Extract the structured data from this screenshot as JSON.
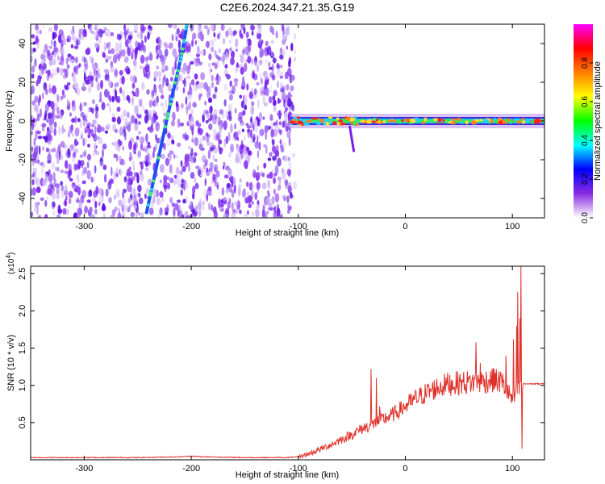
{
  "title": "C2E6.2024.347.21.35.G19",
  "colors": {
    "snr_line": "#e0302a",
    "scatter_purple": "#7a1ff0",
    "track": "#1f4ff5",
    "band_core": "#e8103a"
  },
  "chart_data": [
    {
      "type": "heatmap",
      "xlabel": "Height of straight line (km)",
      "ylabel": "Frequency (Hz)",
      "xlim": [
        -350,
        130
      ],
      "ylim": [
        -50,
        50
      ],
      "xticks": [
        -300,
        -200,
        -100,
        0,
        100
      ],
      "yticks": [
        -40,
        -20,
        0,
        20,
        40
      ],
      "noise_region_x": [
        -350,
        -103
      ],
      "doppler_track": {
        "x": [
          -242,
          -227,
          -219,
          -209,
          -204
        ],
        "y": [
          -48,
          -10,
          10,
          34,
          50
        ]
      },
      "zero_band": {
        "x_start": -107,
        "x_end": 130,
        "frequency": 0
      },
      "colorbar": {
        "label": "Normalized spectral amplitude",
        "ticks": [
          0.0,
          0.2,
          0.4,
          0.6,
          0.8
        ],
        "ticklabels": [
          "0.0",
          "0.2",
          "0.4",
          "0.6",
          "0.8"
        ],
        "range": [
          0,
          1
        ],
        "colormap": [
          "#ffffff",
          "#8a2be2",
          "#0000ff",
          "#00ffff",
          "#00ff00",
          "#ffff00",
          "#ff8000",
          "#ff0000",
          "#ff00ff"
        ]
      }
    },
    {
      "type": "line",
      "xlabel": "Height of straight line (km)",
      "ylabel": "SNR (10 * v/v)",
      "multiplier_label": "(x10",
      "multiplier_exp": "4",
      "multiplier_close": ")",
      "xlim": [
        -350,
        130
      ],
      "ylim": [
        0,
        2.6
      ],
      "xticks": [
        -300,
        -200,
        -100,
        0,
        100
      ],
      "yticks": [
        0.5,
        1.0,
        1.5,
        2.0,
        2.5
      ],
      "yticklabels": [
        "0.5",
        "1.0",
        "1.5",
        "2.0",
        "2.5"
      ],
      "series": [
        {
          "x": [
            -350,
            -300,
            -250,
            -210,
            -200,
            -190,
            -150,
            -110,
            -100,
            -90,
            -80,
            -70,
            -60,
            -50,
            -40,
            -30,
            -20,
            -10,
            0,
            10,
            20,
            30,
            40,
            50,
            60,
            70,
            80,
            90,
            100,
            105,
            110,
            130
          ],
          "values": [
            0.03,
            0.03,
            0.03,
            0.04,
            0.05,
            0.04,
            0.03,
            0.03,
            0.04,
            0.08,
            0.14,
            0.2,
            0.27,
            0.34,
            0.42,
            0.48,
            0.55,
            0.62,
            0.72,
            0.82,
            0.9,
            0.97,
            1.02,
            1.03,
            1.04,
            1.05,
            1.07,
            1.05,
            0.8,
            0.9,
            1.02,
            1.02
          ],
          "spikes": [
            {
              "x": -32,
              "y": 1.22
            },
            {
              "x": -27,
              "y": 1.1
            },
            {
              "x": -24,
              "y": 0.72
            },
            {
              "x": 66,
              "y": 1.58
            },
            {
              "x": 70,
              "y": 1.3
            },
            {
              "x": 83,
              "y": 1.22
            },
            {
              "x": 94,
              "y": 1.4
            },
            {
              "x": 101,
              "y": 1.62
            },
            {
              "x": 104,
              "y": 1.8
            },
            {
              "x": 105,
              "y": 2.25
            },
            {
              "x": 107,
              "y": 1.9
            },
            {
              "x": 108,
              "y": 2.6
            },
            {
              "x": 109,
              "y": 0.15
            }
          ]
        }
      ]
    }
  ]
}
